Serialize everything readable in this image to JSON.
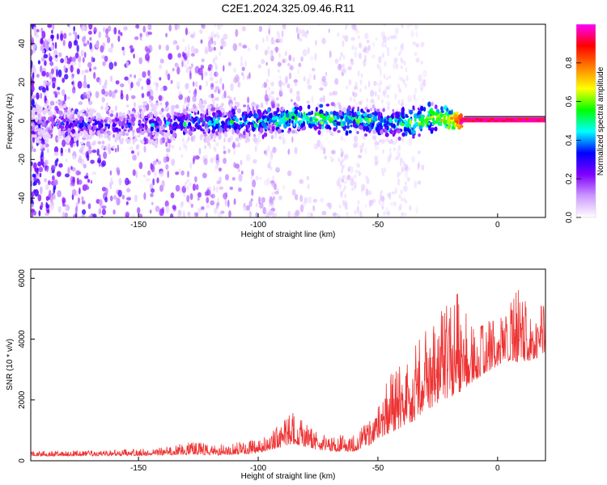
{
  "figure": {
    "title": "C2E1.2024.325.09.46.R11"
  },
  "chart_data": [
    {
      "type": "heatmap",
      "title": "C2E1.2024.325.09.46.R11",
      "xlabel": "Height of straight line (km)",
      "ylabel": "Frequency (Hz)",
      "xlim": [
        -195,
        20
      ],
      "ylim": [
        -50,
        50
      ],
      "x_ticks": [
        -150,
        -100,
        -50,
        0
      ],
      "y_ticks": [
        -40,
        -20,
        0,
        20,
        40
      ],
      "colorbar": {
        "label": "Normalized spectral amplitude",
        "range": [
          0,
          1
        ],
        "ticks": [
          "0.0",
          "0.2",
          "0.4",
          "0.6",
          "0.8"
        ],
        "colormap": [
          "#ffffff",
          "#cc99ff",
          "#7f00ff",
          "#0000ff",
          "#00ffff",
          "#00ff00",
          "#ffff00",
          "#ff8000",
          "#ff0000",
          "#ff00ff"
        ]
      },
      "ridge": {
        "x": [
          -195,
          -150,
          -130,
          -100,
          -85,
          -75,
          -65,
          -55,
          -45,
          -35,
          -28,
          -20,
          -15,
          -10,
          0,
          10,
          20
        ],
        "frequency": [
          -1.5,
          -2.5,
          -1,
          0,
          1.5,
          1.5,
          1,
          1,
          -1.5,
          -1,
          2,
          1,
          0.5,
          0.5,
          0.5,
          0.5,
          0.5
        ],
        "amplitude": [
          0.25,
          0.3,
          0.4,
          0.45,
          0.5,
          0.55,
          0.5,
          0.5,
          0.45,
          0.55,
          0.6,
          0.65,
          0.95,
          0.97,
          0.97,
          0.97,
          0.97
        ]
      },
      "grid": false
    },
    {
      "type": "line",
      "xlabel": "Height of straight line (km)",
      "ylabel": "SNR (10 * v/v)",
      "xlim": [
        -195,
        20
      ],
      "ylim": [
        0,
        6300
      ],
      "x_ticks": [
        -150,
        -100,
        -50,
        0
      ],
      "y_ticks": [
        0,
        2000,
        4000,
        6000
      ],
      "color": "#ee3333",
      "envelope": {
        "x": [
          -195,
          -160,
          -140,
          -130,
          -115,
          -100,
          -95,
          -90,
          -85,
          -80,
          -75,
          -70,
          -60,
          -55,
          -50,
          -45,
          -40,
          -35,
          -30,
          -25,
          -20,
          -15,
          -10,
          -5,
          0,
          5,
          10,
          15,
          20
        ],
        "base": [
          150,
          160,
          180,
          200,
          180,
          250,
          350,
          450,
          550,
          450,
          350,
          300,
          300,
          450,
          700,
          900,
          1100,
          1300,
          1600,
          1900,
          2100,
          2300,
          2600,
          2900,
          3100,
          3300,
          3200,
          3300,
          3600
        ],
        "peak": [
          320,
          350,
          450,
          650,
          550,
          700,
          900,
          1300,
          1700,
          1200,
          900,
          800,
          900,
          1200,
          1800,
          3000,
          3400,
          3700,
          4300,
          4800,
          5200,
          5800,
          4300,
          4600,
          4600,
          5100,
          6000,
          5300,
          5200
        ]
      },
      "grid": false
    }
  ]
}
